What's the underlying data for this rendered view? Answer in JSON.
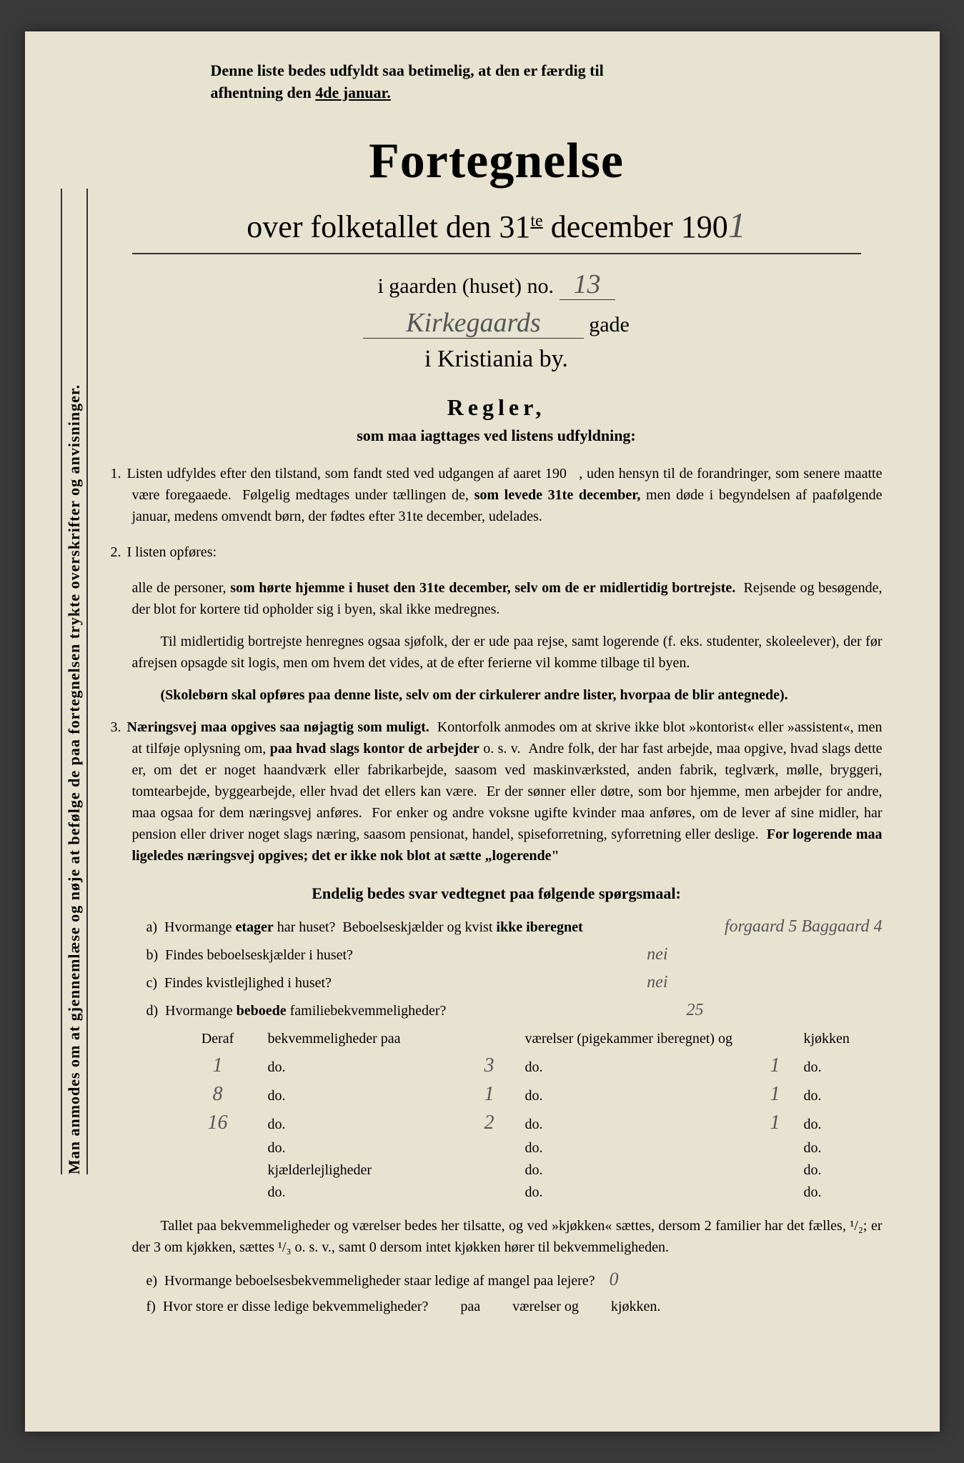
{
  "colors": {
    "paper_bg": "#e8e2d0",
    "outer_bg": "#3a3a3a",
    "text": "#2a2a2a",
    "handwritten": "#555555"
  },
  "vertical_note": "Man anmodes om at gjennemlæse og nøje at befølge de paa fortegnelsen trykte overskrifter og anvisninger.",
  "header_note_line1": "Denne liste bedes udfyldt saa betimelig, at den er færdig til",
  "header_note_line2_prefix": "afhentning den ",
  "header_note_line2_underline": "4de januar.",
  "main_title": "Fortegnelse",
  "subtitle_prefix": "over folketallet den 31",
  "subtitle_super": "te",
  "subtitle_mid": " december 190",
  "subtitle_hw": "1",
  "address_prefix": "i gaarden (huset) no. ",
  "address_hw_no": "13",
  "street_hw": "Kirkegaards",
  "street_suffix": "gade",
  "city_line": "i Kristiania by.",
  "regler_title": "Regler,",
  "regler_sub": "som maa iagttages ved listens udfyldning:",
  "rule1_num": "1.",
  "rule1": "Listen udfyldes efter den tilstand, som fandt sted ved udgangen af aaret 190   , uden hensyn til de forandringer, som senere maatte være foregaaede.  Følgelig medtages under tællingen de, som levede 31te december, men døde i begyndelsen af paafølgende januar, medens omvendt børn, der fødtes efter 31te december, udelades.",
  "rule2_num": "2.",
  "rule2_intro": "I listen opføres:",
  "rule2_a": "alle de personer, som hørte hjemme i huset den 31te december, selv om de er midlertidig bortrejste.  Rejsende og besøgende, der blot for kortere tid opholder sig i byen, skal ikke medregnes.",
  "rule2_b": "Til midlertidig bortrejste henregnes ogsaa sjøfolk, der er ude paa rejse, samt logerende (f. eks. studenter, skoleelever), der før afrejsen opsagde sit logis, men om hvem det vides, at de efter ferierne vil komme tilbage til byen.",
  "rule2_c": "(Skolebørn skal opføres paa denne liste, selv om der cirkulerer andre lister, hvorpaa de blir antegnede).",
  "rule3_num": "3.",
  "rule3": "Næringsvej maa opgives saa nøjagtig som muligt.  Kontorfolk anmodes om at skrive ikke blot »kontorist« eller »assistent«, men at tilføje oplysning om, paa hvad slags kontor de arbejder o. s. v.  Andre folk, der har fast arbejde, maa opgive, hvad slags dette er, om det er noget haandværk eller fabrikarbejde, saasom ved maskinværksted, anden fabrik, teglværk, mølle, bryggeri, tomtearbejde, byggearbejde, eller hvad det ellers kan være.  Er der sønner eller døtre, som bor hjemme, men arbejder for andre, maa ogsaa for dem næringsvej anføres.  For enker og andre voksne ugifte kvinder maa anføres, om de lever af sine midler, har pension eller driver noget slags næring, saasom pensionat, handel, spiseforretning, syforretning eller deslige.  For logerende maa ligeledes næringsvej opgives; det er ikke nok blot at sætte „logerende\"",
  "questions_title": "Endelig bedes svar vedtegnet paa følgende spørgsmaal:",
  "q_a_label": "a)",
  "q_a_text": "Hvormange etager har huset?  Beboelseskjælder og kvist ikke iberegnet",
  "q_a_answer": "forgaard 5  Baggaard 4",
  "q_b_label": "b)",
  "q_b_text": "Findes beboelseskjælder i huset?",
  "q_b_answer": "nei",
  "q_c_label": "c)",
  "q_c_text": "Findes kvistlejlighed i huset?",
  "q_c_answer": "nei",
  "q_d_label": "d)",
  "q_d_text": "Hvormange beboede familiebekvemmeligheder?",
  "q_d_answer": "25",
  "table_header": {
    "col1": "Deraf",
    "col2": "bekvemmeligheder paa",
    "col4": "værelser (pigekammer iberegnet) og",
    "col6": "kjøkken"
  },
  "table_rows": [
    {
      "c1": "1",
      "c2": "do.",
      "c3": "3",
      "c4": "do.",
      "c5": "1",
      "c6": "do."
    },
    {
      "c1": "8",
      "c2": "do.",
      "c3": "1",
      "c4": "do.",
      "c5": "1",
      "c6": "do."
    },
    {
      "c1": "16",
      "c2": "do.",
      "c3": "2",
      "c4": "do.",
      "c5": "1",
      "c6": "do."
    },
    {
      "c1": "",
      "c2": "do.",
      "c3": "",
      "c4": "do.",
      "c5": "",
      "c6": "do."
    },
    {
      "c1": "",
      "c2": "kjælderlejligheder",
      "c3": "",
      "c4": "do.",
      "c5": "",
      "c6": "do."
    },
    {
      "c1": "",
      "c2": "do.",
      "c3": "",
      "c4": "do.",
      "c5": "",
      "c6": "do."
    }
  ],
  "footer_para": "Tallet paa bekvemmeligheder og værelser bedes her tilsatte, og ved »kjøkken« sættes, dersom 2 familier har det fælles, ¹/₂; er der 3 om kjøkken, sættes ¹/₃ o. s. v., samt 0 dersom intet kjøkken hører til bekvemmeligheden.",
  "q_e_label": "e)",
  "q_e_text": "Hvormange beboelsesbekvemmeligheder staar ledige af mangel paa lejere?",
  "q_e_answer": "0",
  "q_f_label": "f)",
  "q_f_text": "Hvor store er disse ledige bekvemmeligheder?",
  "q_f_mid": "paa",
  "q_f_rooms": "værelser og",
  "q_f_kitchen": "kjøkken."
}
